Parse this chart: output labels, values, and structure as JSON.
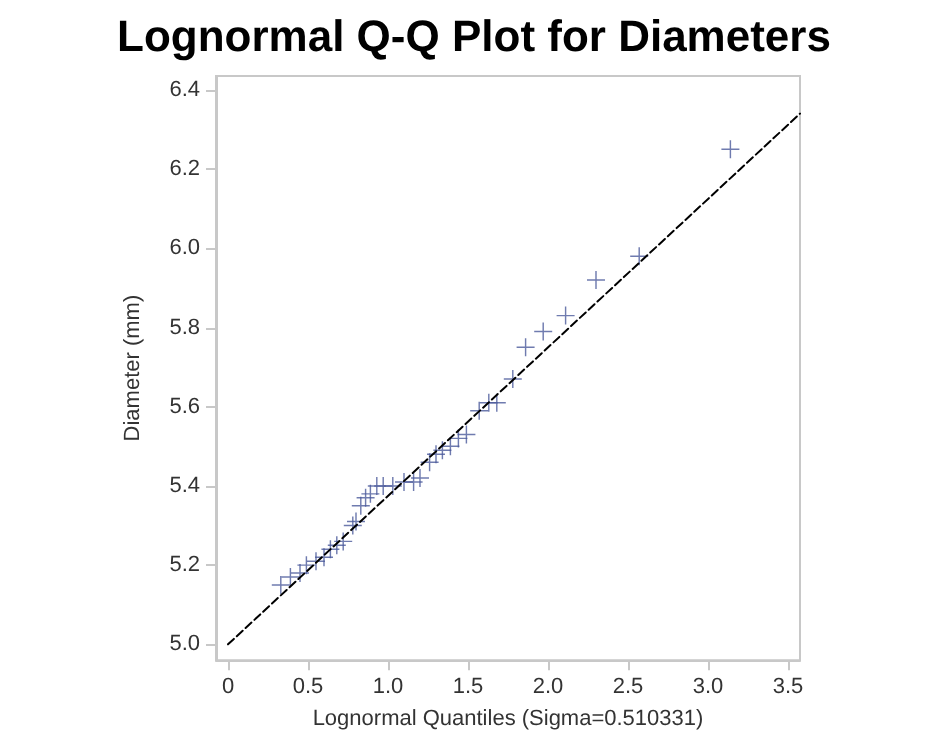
{
  "chart_data": {
    "type": "scatter",
    "title": "Lognormal Q-Q Plot for Diameters",
    "xlabel": "Lognormal Quantiles (Sigma=0.510331)",
    "ylabel": "Diameter (mm)",
    "xlim": [
      -0.075,
      3.575
    ],
    "ylim": [
      4.96,
      6.435
    ],
    "xticks": [
      {
        "value": 0,
        "label": "0"
      },
      {
        "value": 0.5,
        "label": "0.5"
      },
      {
        "value": 1,
        "label": "1.0"
      },
      {
        "value": 1.5,
        "label": "1.5"
      },
      {
        "value": 2,
        "label": "2.0"
      },
      {
        "value": 2.5,
        "label": "2.5"
      },
      {
        "value": 3,
        "label": "3.0"
      },
      {
        "value": 3.5,
        "label": "3.5"
      }
    ],
    "yticks": [
      {
        "value": 5,
        "label": "5.0"
      },
      {
        "value": 5.2,
        "label": "5.2"
      },
      {
        "value": 5.4,
        "label": "5.4"
      },
      {
        "value": 5.6,
        "label": "5.6"
      },
      {
        "value": 5.8,
        "label": "5.8"
      },
      {
        "value": 6,
        "label": "6.0"
      },
      {
        "value": 6.2,
        "label": "6.2"
      },
      {
        "value": 6.4,
        "label": "6.4"
      }
    ],
    "grid": false,
    "marker": "cross",
    "series": [
      {
        "color": "#4b5a9b",
        "x": [
          0.33,
          0.39,
          0.45,
          0.49,
          0.55,
          0.6,
          0.64,
          0.68,
          0.72,
          0.78,
          0.8,
          0.83,
          0.86,
          0.89,
          0.93,
          0.97,
          1.03,
          1.1,
          1.16,
          1.2,
          1.26,
          1.3,
          1.34,
          1.39,
          1.44,
          1.49,
          1.57,
          1.63,
          1.68,
          1.78,
          1.86,
          1.97,
          2.11,
          2.3,
          2.57,
          3.14
        ],
        "values": [
          5.15,
          5.17,
          5.18,
          5.2,
          5.21,
          5.22,
          5.24,
          5.25,
          5.26,
          5.3,
          5.31,
          5.35,
          5.37,
          5.38,
          5.4,
          5.4,
          5.4,
          5.41,
          5.41,
          5.42,
          5.46,
          5.48,
          5.49,
          5.5,
          5.52,
          5.53,
          5.59,
          5.61,
          5.61,
          5.67,
          5.75,
          5.79,
          5.83,
          5.92,
          5.98,
          6.25
        ]
      },
      {
        "type": "line",
        "color": "#000000",
        "line_style": "dashed",
        "marker": "none",
        "x": [
          0,
          3.575
        ],
        "values": [
          5.0,
          6.34
        ]
      }
    ]
  }
}
